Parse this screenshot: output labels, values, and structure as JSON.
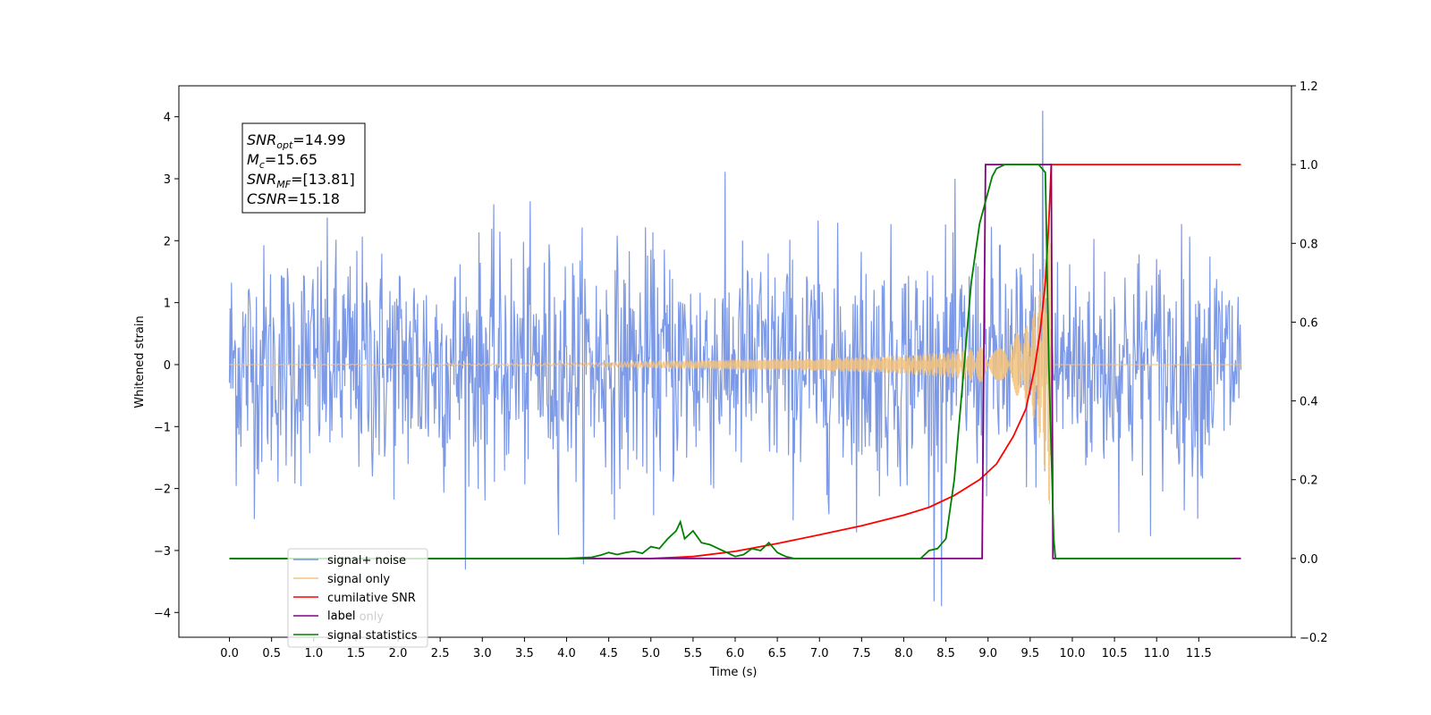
{
  "chart_data": {
    "type": "line",
    "title": "",
    "xlabel": "Time (s)",
    "ylabel": "Whitened strain",
    "xlim": [
      -0.6,
      12.6
    ],
    "ylim": [
      -4.4,
      4.5
    ],
    "y2lim": [
      -0.2,
      1.2
    ],
    "x_ticks": [
      0.0,
      0.5,
      1.0,
      1.5,
      2.0,
      2.5,
      3.0,
      3.5,
      4.0,
      4.5,
      5.0,
      5.5,
      6.0,
      6.5,
      7.0,
      7.5,
      8.0,
      8.5,
      9.0,
      9.5,
      10.0,
      10.5,
      11.0,
      11.5
    ],
    "x_tick_labels": [
      "0.0",
      "0.5",
      "1.0",
      "1.5",
      "2.0",
      "2.5",
      "3.0",
      "3.5",
      "4.0",
      "4.5",
      "5.0",
      "5.5",
      "6.0",
      "6.5",
      "7.0",
      "7.5",
      "8.0",
      "8.5",
      "9.0",
      "9.5",
      "10.0",
      "10.5",
      "11.0",
      "11.5"
    ],
    "y_ticks": [
      4,
      3,
      2,
      1,
      0,
      -1,
      -2,
      -3,
      -4
    ],
    "y_tick_labels": [
      "4",
      "3",
      "2",
      "1",
      "0",
      "−1",
      "−2",
      "−3",
      "−4"
    ],
    "y2_ticks": [
      1.2,
      1.0,
      0.8,
      0.6,
      0.4,
      0.2,
      0.0,
      -0.2
    ],
    "y2_tick_labels": [
      "1.2",
      "1.0",
      "0.8",
      "0.6",
      "0.4",
      "0.2",
      "0.0",
      "−0.2"
    ],
    "grid": false,
    "legend_position": "lower-left",
    "annotation": {
      "snr_opt": {
        "name": "SNR",
        "sub": "opt",
        "value": "=14.99"
      },
      "mc": {
        "name": "M",
        "sub": "c",
        "value": "=15.65"
      },
      "snr_mf": {
        "name": "SNR",
        "sub": "MF",
        "value": "=[13.81]"
      },
      "csnr": {
        "name": "CSNR",
        "sub": "",
        "value": "=15.18"
      }
    },
    "series": [
      {
        "name": "signal+ noise",
        "axis": "left",
        "color": "#7593e6",
        "description_values": {
          "x_start": 0.0,
          "x_end": 12.0,
          "typical_min": -2.0,
          "typical_max": 2.3,
          "peak_max": 4.1,
          "peak_max_x": 9.65,
          "peak_min": -3.9,
          "peak_min_x": 8.45
        }
      },
      {
        "name": "signal only",
        "axis": "left",
        "color": "#f5c27a",
        "x": [
          0.0,
          4.0,
          5.0,
          6.0,
          7.0,
          7.5,
          8.0,
          8.5,
          9.0,
          9.3,
          9.5,
          9.6,
          9.68,
          9.74,
          9.76,
          12.0
        ],
        "amplitude": [
          0.0,
          0.02,
          0.05,
          0.08,
          0.1,
          0.12,
          0.15,
          0.2,
          0.3,
          0.45,
          0.7,
          1.1,
          1.8,
          2.5,
          0.0,
          0.0
        ]
      },
      {
        "name": "cumilative SNR",
        "axis": "right",
        "color": "#ff0000",
        "x": [
          0.0,
          5.0,
          5.5,
          6.0,
          6.5,
          7.0,
          7.5,
          8.0,
          8.3,
          8.6,
          8.9,
          9.1,
          9.3,
          9.45,
          9.55,
          9.62,
          9.68,
          9.72,
          9.74,
          9.75,
          12.0
        ],
        "y": [
          0.0,
          0.0,
          0.005,
          0.018,
          0.038,
          0.06,
          0.083,
          0.11,
          0.13,
          0.16,
          0.2,
          0.24,
          0.31,
          0.38,
          0.48,
          0.58,
          0.7,
          0.85,
          0.95,
          1.0,
          1.0
        ]
      },
      {
        "name": "label",
        "axis": "right",
        "color": "#800080",
        "x": [
          0.0,
          8.93,
          8.97,
          9.75,
          9.77,
          12.0
        ],
        "y": [
          0.0,
          0.0,
          1.0,
          1.0,
          0.0,
          0.0
        ]
      },
      {
        "name": "label only",
        "axis": "right",
        "color": "#cccccc",
        "hidden": true,
        "x": [],
        "y": []
      },
      {
        "name": "signal statistics",
        "axis": "right",
        "color": "#008000",
        "x": [
          0.0,
          4.0,
          4.3,
          4.4,
          4.5,
          4.6,
          4.7,
          4.8,
          4.9,
          5.0,
          5.1,
          5.2,
          5.3,
          5.35,
          5.4,
          5.5,
          5.6,
          5.7,
          5.8,
          5.9,
          6.0,
          6.1,
          6.2,
          6.3,
          6.4,
          6.5,
          6.6,
          6.7,
          7.0,
          8.2,
          8.3,
          8.4,
          8.5,
          8.6,
          8.7,
          8.8,
          8.9,
          9.0,
          9.05,
          9.1,
          9.2,
          9.4,
          9.6,
          9.68,
          9.72,
          9.78,
          9.8,
          11.9
        ],
        "y": [
          0.0,
          0.0,
          0.003,
          0.008,
          0.015,
          0.01,
          0.015,
          0.018,
          0.013,
          0.03,
          0.025,
          0.05,
          0.07,
          0.093,
          0.05,
          0.07,
          0.04,
          0.035,
          0.025,
          0.015,
          0.005,
          0.01,
          0.025,
          0.02,
          0.04,
          0.015,
          0.005,
          0.0,
          0.0,
          0.0,
          0.02,
          0.025,
          0.05,
          0.2,
          0.45,
          0.7,
          0.85,
          0.93,
          0.97,
          0.99,
          1.0,
          1.0,
          1.0,
          0.98,
          0.5,
          0.05,
          0.0,
          0.0
        ]
      }
    ]
  }
}
